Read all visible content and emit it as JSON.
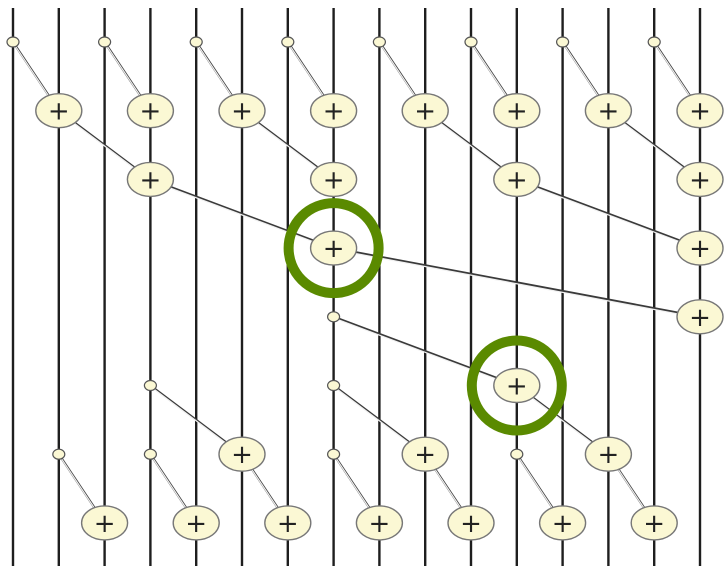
{
  "diagram": {
    "kind": "parallel-prefix-adder-network",
    "wire_count": 16,
    "operator_symbol": "+",
    "colors": {
      "background": "#ffffff",
      "wire": "#1e1e1e",
      "connector": "#3a3a3a",
      "operator_fill": "#fbf8d4",
      "operator_outline": "#777777",
      "highlight_ring": "#5a8a00"
    },
    "levels": [
      {
        "name": "up-sweep-1",
        "ops": [
          [
            0,
            1
          ],
          [
            2,
            3
          ],
          [
            4,
            5
          ],
          [
            6,
            7
          ],
          [
            8,
            9
          ],
          [
            10,
            11
          ],
          [
            12,
            13
          ],
          [
            14,
            15
          ]
        ]
      },
      {
        "name": "up-sweep-2",
        "ops": [
          [
            1,
            3
          ],
          [
            5,
            7
          ],
          [
            9,
            11
          ],
          [
            13,
            15
          ]
        ]
      },
      {
        "name": "up-sweep-3",
        "ops": [
          [
            3,
            7
          ],
          [
            11,
            15
          ]
        ]
      },
      {
        "name": "up-sweep-4",
        "ops": [
          [
            7,
            15
          ]
        ]
      },
      {
        "name": "down-sweep-1",
        "ops": [
          [
            7,
            11
          ]
        ]
      },
      {
        "name": "down-sweep-2",
        "ops": [
          [
            3,
            5
          ],
          [
            7,
            9
          ],
          [
            11,
            13
          ]
        ]
      },
      {
        "name": "down-sweep-3",
        "ops": [
          [
            1,
            2
          ],
          [
            3,
            4
          ],
          [
            5,
            6
          ],
          [
            7,
            8
          ],
          [
            9,
            10
          ],
          [
            11,
            12
          ],
          [
            13,
            14
          ]
        ]
      }
    ],
    "highlighted_ops": [
      {
        "level": 2,
        "op": 0
      },
      {
        "level": 4,
        "op": 0
      }
    ]
  }
}
